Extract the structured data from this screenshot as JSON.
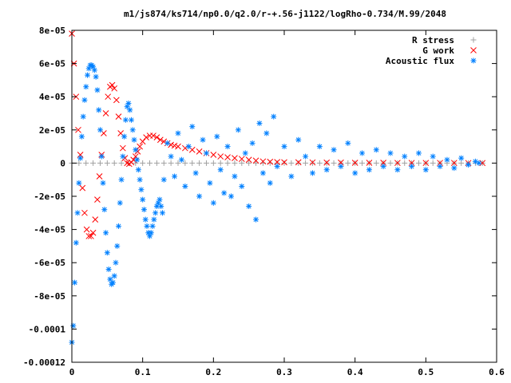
{
  "chart_data": {
    "type": "scatter",
    "title": "m1/js874/ks714/np0.0/q2.0/r-+.56-j1122/logRho-0.734/M.99/2048",
    "xlabel": "",
    "ylabel": "",
    "xlim": [
      0,
      0.6
    ],
    "ylim": [
      -0.00012,
      8e-05
    ],
    "x_ticks": [
      0,
      0.1,
      0.2,
      0.3,
      0.4,
      0.5,
      0.6
    ],
    "x_tick_labels": [
      "0",
      "0.1",
      "0.2",
      "0.3",
      "0.4",
      "0.5",
      "0.6"
    ],
    "y_ticks": [
      -0.00012,
      -0.0001,
      -8e-05,
      -6e-05,
      -4e-05,
      -2e-05,
      0,
      2e-05,
      4e-05,
      6e-05,
      8e-05
    ],
    "y_tick_labels": [
      "-0.00012",
      "-0.0001",
      "-8e-05",
      "-6e-05",
      "-4e-05",
      "-2e-05",
      "0",
      "2e-05",
      "4e-05",
      "6e-05",
      "8e-05"
    ],
    "grid": false,
    "legend_position": "top-right",
    "series": [
      {
        "name": "R stress",
        "marker": "+",
        "color": "#a0a0a0",
        "x": [
          0,
          0.01,
          0.02,
          0.03,
          0.04,
          0.05,
          0.06,
          0.07,
          0.08,
          0.09,
          0.1,
          0.11,
          0.12,
          0.13,
          0.14,
          0.15,
          0.16,
          0.17,
          0.18,
          0.19,
          0.2,
          0.21,
          0.22,
          0.23,
          0.24,
          0.25,
          0.26,
          0.27,
          0.28,
          0.29,
          0.3,
          0.31,
          0.32,
          0.33,
          0.34,
          0.35,
          0.36,
          0.37,
          0.38,
          0.39,
          0.4,
          0.41,
          0.42,
          0.43,
          0.44,
          0.45,
          0.46,
          0.47,
          0.48,
          0.49,
          0.5,
          0.51,
          0.52,
          0.53,
          0.54,
          0.55,
          0.56,
          0.57,
          0.58
        ],
        "y": [
          0,
          0,
          0,
          0,
          0,
          0,
          0,
          0,
          0,
          0,
          0,
          0,
          0,
          0,
          0,
          0,
          0,
          0,
          0,
          0,
          0,
          0,
          0,
          0,
          0,
          0,
          0,
          0,
          0,
          0,
          0,
          0,
          0,
          0,
          0,
          0,
          0,
          0,
          0,
          0,
          0,
          0,
          0,
          0,
          0,
          0,
          0,
          0,
          0,
          0,
          0,
          0,
          0,
          0,
          0,
          0,
          0,
          0,
          0
        ]
      },
      {
        "name": "G work",
        "marker": "x",
        "color": "#ff0000",
        "x": [
          0,
          0.003,
          0.006,
          0.009,
          0.012,
          0.015,
          0.018,
          0.021,
          0.024,
          0.027,
          0.03,
          0.033,
          0.036,
          0.039,
          0.042,
          0.045,
          0.048,
          0.051,
          0.054,
          0.057,
          0.06,
          0.063,
          0.066,
          0.069,
          0.072,
          0.075,
          0.078,
          0.081,
          0.084,
          0.087,
          0.09,
          0.093,
          0.096,
          0.1,
          0.105,
          0.11,
          0.115,
          0.12,
          0.125,
          0.13,
          0.135,
          0.14,
          0.145,
          0.15,
          0.16,
          0.17,
          0.18,
          0.19,
          0.2,
          0.21,
          0.22,
          0.23,
          0.24,
          0.25,
          0.26,
          0.27,
          0.28,
          0.29,
          0.3,
          0.32,
          0.34,
          0.36,
          0.38,
          0.4,
          0.42,
          0.44,
          0.46,
          0.48,
          0.5,
          0.52,
          0.54,
          0.56,
          0.58
        ],
        "y": [
          7.8e-05,
          6e-05,
          4e-05,
          2e-05,
          5e-06,
          -1.5e-05,
          -3e-05,
          -4e-05,
          -4.4e-05,
          -4.4e-05,
          -4.2e-05,
          -3.4e-05,
          -2.2e-05,
          -8e-06,
          5e-06,
          1.8e-05,
          3e-05,
          4e-05,
          4.6e-05,
          4.7e-05,
          4.5e-05,
          3.8e-05,
          2.8e-05,
          1.8e-05,
          9e-06,
          3e-06,
          0,
          -5e-07,
          5e-07,
          2e-06,
          4e-06,
          7e-06,
          1e-05,
          1.3e-05,
          1.55e-05,
          1.65e-05,
          1.65e-05,
          1.55e-05,
          1.4e-05,
          1.3e-05,
          1.2e-05,
          1.1e-05,
          1.05e-05,
          1e-05,
          9e-06,
          8e-06,
          7e-06,
          6e-06,
          5e-06,
          4e-06,
          3.5e-06,
          3e-06,
          2.5e-06,
          2e-06,
          1.5e-06,
          1e-06,
          8e-07,
          6e-07,
          5e-07,
          5e-07,
          4e-07,
          3e-07,
          3e-07,
          2e-07,
          2e-07,
          2e-07,
          1e-07,
          1e-07,
          1e-07,
          1e-07,
          1e-07,
          5e-08,
          5e-08
        ]
      },
      {
        "name": "Acoustic flux",
        "marker": "*",
        "color": "#0080ff",
        "x": [
          0,
          0.002,
          0.004,
          0.006,
          0.008,
          0.01,
          0.012,
          0.014,
          0.016,
          0.018,
          0.02,
          0.022,
          0.024,
          0.026,
          0.028,
          0.03,
          0.032,
          0.034,
          0.036,
          0.038,
          0.04,
          0.042,
          0.044,
          0.046,
          0.048,
          0.05,
          0.052,
          0.054,
          0.056,
          0.058,
          0.06,
          0.062,
          0.064,
          0.066,
          0.068,
          0.07,
          0.072,
          0.074,
          0.076,
          0.078,
          0.08,
          0.082,
          0.084,
          0.086,
          0.088,
          0.09,
          0.092,
          0.094,
          0.096,
          0.098,
          0.1,
          0.102,
          0.104,
          0.106,
          0.108,
          0.11,
          0.112,
          0.114,
          0.116,
          0.118,
          0.12,
          0.122,
          0.124,
          0.126,
          0.128,
          0.13,
          0.135,
          0.14,
          0.145,
          0.15,
          0.155,
          0.16,
          0.165,
          0.17,
          0.175,
          0.18,
          0.185,
          0.19,
          0.195,
          0.2,
          0.205,
          0.21,
          0.215,
          0.22,
          0.225,
          0.23,
          0.235,
          0.24,
          0.245,
          0.25,
          0.255,
          0.26,
          0.265,
          0.27,
          0.275,
          0.28,
          0.285,
          0.29,
          0.3,
          0.31,
          0.32,
          0.33,
          0.34,
          0.35,
          0.36,
          0.37,
          0.38,
          0.39,
          0.4,
          0.41,
          0.42,
          0.43,
          0.44,
          0.45,
          0.46,
          0.47,
          0.48,
          0.49,
          0.5,
          0.51,
          0.52,
          0.53,
          0.54,
          0.55,
          0.56,
          0.57,
          0.575
        ],
        "y": [
          -0.000108,
          -9.8e-05,
          -7.2e-05,
          -4.8e-05,
          -3e-05,
          -1.2e-05,
          3e-06,
          1.6e-05,
          2.8e-05,
          3.8e-05,
          4.6e-05,
          5.3e-05,
          5.7e-05,
          5.9e-05,
          5.9e-05,
          5.8e-05,
          5.6e-05,
          5.2e-05,
          4.4e-05,
          3.2e-05,
          2e-05,
          4e-06,
          -1.2e-05,
          -2.8e-05,
          -4.2e-05,
          -5.4e-05,
          -6.4e-05,
          -7e-05,
          -7.3e-05,
          -7.2e-05,
          -6.8e-05,
          -6e-05,
          -5e-05,
          -3.8e-05,
          -2.4e-05,
          -1e-05,
          4e-06,
          1.6e-05,
          2.6e-05,
          3.4e-05,
          3.6e-05,
          3.2e-05,
          2.6e-05,
          2e-05,
          1.4e-05,
          8e-06,
          2e-06,
          -4e-06,
          -1e-05,
          -1.6e-05,
          -2.2e-05,
          -2.8e-05,
          -3.4e-05,
          -3.8e-05,
          -4.2e-05,
          -4.4e-05,
          -4.2e-05,
          -3.8e-05,
          -3.4e-05,
          -3e-05,
          -2.6e-05,
          -2.4e-05,
          -2.2e-05,
          -2.6e-05,
          -3e-05,
          -1e-05,
          1.2e-05,
          4e-06,
          -8e-06,
          1.8e-05,
          2e-06,
          -1.4e-05,
          1e-05,
          2.2e-05,
          -6e-06,
          -2e-05,
          1.4e-05,
          6e-06,
          -1.2e-05,
          -2.4e-05,
          1.6e-05,
          -4e-06,
          -1.8e-05,
          1e-05,
          -2e-05,
          -8e-06,
          2e-05,
          -1.4e-05,
          6e-06,
          -2.6e-05,
          1.2e-05,
          -3.4e-05,
          2.4e-05,
          -6e-06,
          1.8e-05,
          -1.2e-05,
          2.8e-05,
          -2e-06,
          1e-05,
          -8e-06,
          1.4e-05,
          4e-06,
          -6e-06,
          1e-05,
          -4e-06,
          8e-06,
          -2e-06,
          1.2e-05,
          -6e-06,
          6e-06,
          -4e-06,
          8e-06,
          -2e-06,
          6e-06,
          -4e-06,
          4e-06,
          -2e-06,
          6e-06,
          -4e-06,
          4e-06,
          -2e-06,
          2e-06,
          -3e-06,
          3e-06,
          -1e-06,
          1e-06,
          0
        ]
      }
    ]
  }
}
